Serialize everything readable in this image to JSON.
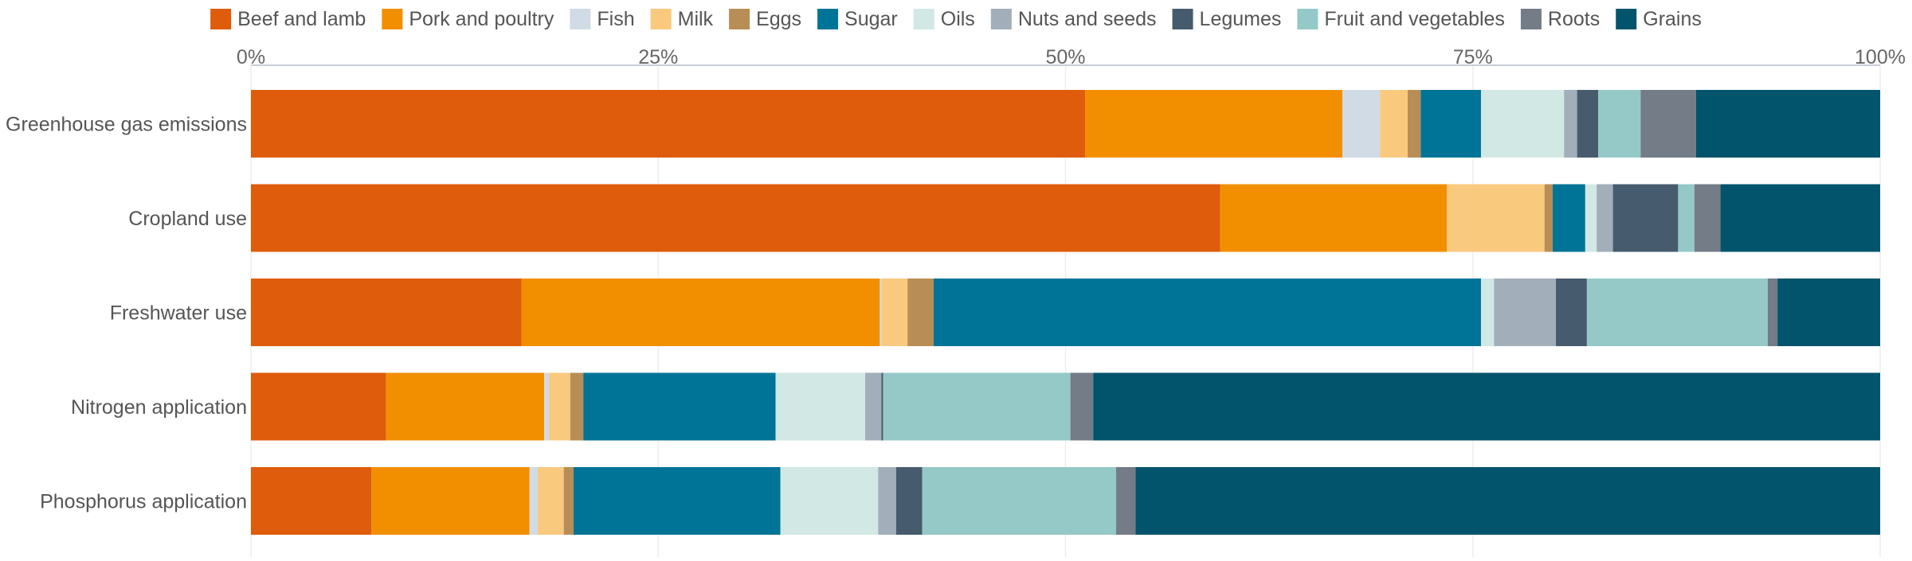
{
  "chart_data": {
    "type": "bar",
    "orientation": "horizontal",
    "stacked": "percent",
    "legend_position": "top",
    "grid": true,
    "xlim": [
      0,
      100
    ],
    "xticks": [
      "0%",
      "25%",
      "50%",
      "75%",
      "100%"
    ],
    "categories": [
      "Greenhouse gas emissions",
      "Cropland use",
      "Freshwater use",
      "Nitrogen application",
      "Phosphorus application"
    ],
    "series": [
      {
        "name": "Beef and lamb",
        "color": "#de5c0b",
        "values": [
          51.2,
          59.5,
          16.6,
          8.3,
          7.4
        ]
      },
      {
        "name": "Pork and poultry",
        "color": "#f28f00",
        "values": [
          15.8,
          13.9,
          22.0,
          9.7,
          9.7
        ]
      },
      {
        "name": "Fish",
        "color": "#d1dbe6",
        "values": [
          2.3,
          0.0,
          0.1,
          0.3,
          0.5
        ]
      },
      {
        "name": "Milk",
        "color": "#f9c97e",
        "values": [
          1.7,
          6.0,
          1.6,
          1.3,
          1.6
        ]
      },
      {
        "name": "Eggs",
        "color": "#b98e56",
        "values": [
          0.8,
          0.5,
          1.6,
          0.8,
          0.6
        ]
      },
      {
        "name": "Sugar",
        "color": "#007496",
        "values": [
          3.7,
          2.0,
          33.6,
          11.8,
          12.7
        ]
      },
      {
        "name": "Oils",
        "color": "#d2e8e4",
        "values": [
          5.1,
          0.7,
          0.8,
          5.5,
          6.0
        ]
      },
      {
        "name": "Nuts and seeds",
        "color": "#a2aeb9",
        "values": [
          0.8,
          1.0,
          3.8,
          1.0,
          1.1
        ]
      },
      {
        "name": "Legumes",
        "color": "#465b6d",
        "values": [
          1.3,
          4.0,
          1.9,
          0.1,
          1.6
        ]
      },
      {
        "name": "Fruit and vegetables",
        "color": "#94c9c8",
        "values": [
          2.6,
          1.0,
          11.1,
          11.5,
          11.9
        ]
      },
      {
        "name": "Roots",
        "color": "#737c87",
        "values": [
          3.4,
          1.6,
          0.6,
          1.4,
          1.2
        ]
      },
      {
        "name": "Grains",
        "color": "#02546c",
        "values": [
          11.3,
          9.8,
          6.3,
          48.3,
          45.7
        ]
      }
    ]
  }
}
